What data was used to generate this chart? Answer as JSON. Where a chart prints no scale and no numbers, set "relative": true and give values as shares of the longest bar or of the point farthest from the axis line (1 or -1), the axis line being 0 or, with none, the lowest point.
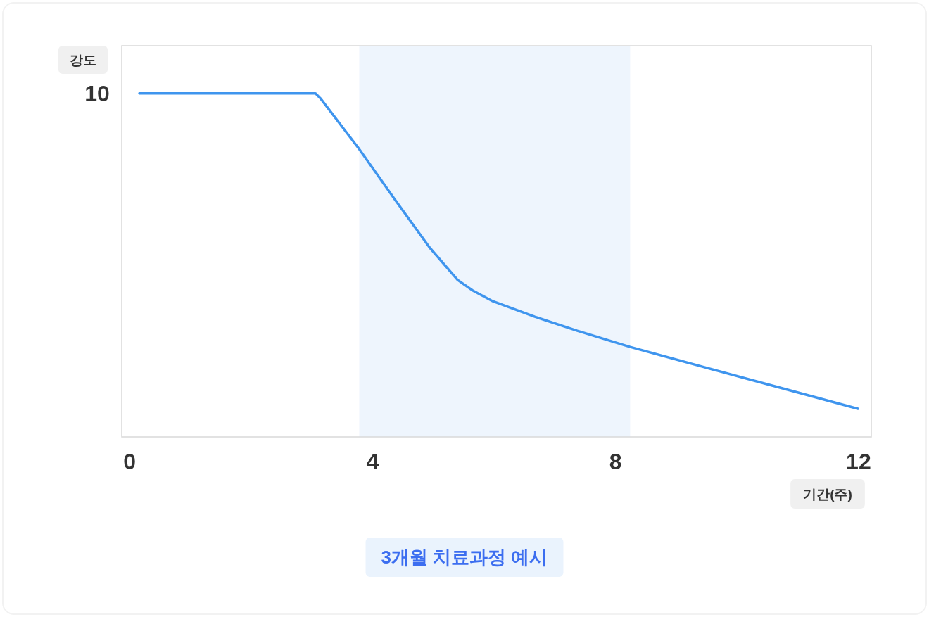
{
  "chart_data": {
    "type": "line",
    "title": "3개월 치료과정 예시",
    "xlabel": "기간(주)",
    "ylabel": "강도",
    "relative": true,
    "xlim": [
      -0.13,
      12.21
    ],
    "xticks": [
      0,
      4,
      8,
      12
    ],
    "grid": false,
    "marker": "none",
    "line_style": "solid",
    "x": [
      0.16,
      3.06,
      3.14,
      3.78,
      4.36,
      4.94,
      5.4,
      5.65,
      5.98,
      6.67,
      7.37,
      8.24,
      9.46,
      10.61,
      11.99
    ],
    "series": [
      {
        "color": "#3f95ee",
        "values": [
          1,
          1,
          0.986,
          0.838,
          0.693,
          0.551,
          0.457,
          0.426,
          0.395,
          0.35,
          0.309,
          0.262,
          0.203,
          0.148,
          0.082
        ]
      }
    ],
    "bands": [
      {
        "axis": "x",
        "from": 3.78,
        "to": 8.24,
        "color": "#eef5fd"
      }
    ],
    "annotations": [
      "10"
    ]
  }
}
